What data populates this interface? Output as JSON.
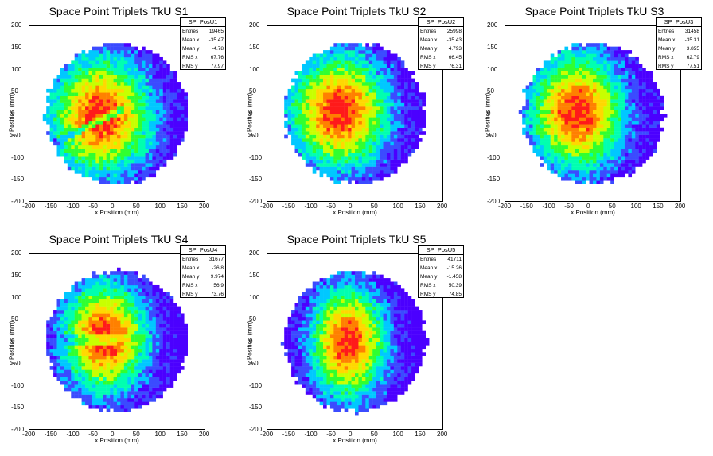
{
  "chart_data": [
    {
      "type": "heatmap",
      "title": "Space Point Triplets TkU S1",
      "xlabel": "x Position (mm)",
      "ylabel": "y Position (mm)",
      "xlim": [
        -200,
        200
      ],
      "ylim": [
        -200,
        200
      ],
      "xticks": [
        "-200",
        "-150",
        "-100",
        "-50",
        "0",
        "50",
        "100",
        "150",
        "200"
      ],
      "yticks": [
        "200",
        "150",
        "100",
        "50",
        "0",
        "-50",
        "-100",
        "-150",
        "-200"
      ],
      "stats": {
        "name": "SP_PosU1",
        "rows": [
          [
            "Entries",
            "19465"
          ],
          [
            "Mean x",
            "-35.47"
          ],
          [
            "Mean y",
            "-4.78"
          ],
          [
            "RMS x",
            "67.76"
          ],
          [
            "RMS y",
            "77.97"
          ]
        ]
      },
      "mean": [
        -35.47,
        -4.78
      ],
      "rms": [
        67.76,
        77.97
      ]
    },
    {
      "type": "heatmap",
      "title": "Space Point Triplets TkU S2",
      "xlabel": "x Position (mm)",
      "ylabel": "y Position (mm)",
      "xlim": [
        -200,
        200
      ],
      "ylim": [
        -200,
        200
      ],
      "xticks": [
        "-200",
        "-150",
        "-100",
        "-50",
        "0",
        "50",
        "100",
        "150",
        "200"
      ],
      "yticks": [
        "200",
        "150",
        "100",
        "50",
        "0",
        "-50",
        "-100",
        "-150",
        "-200"
      ],
      "stats": {
        "name": "SP_PosU2",
        "rows": [
          [
            "Entries",
            "25998"
          ],
          [
            "Mean x",
            "-35.43"
          ],
          [
            "Mean y",
            "4.793"
          ],
          [
            "RMS x",
            "66.45"
          ],
          [
            "RMS y",
            "76.31"
          ]
        ]
      },
      "mean": [
        -35.43,
        4.793
      ],
      "rms": [
        66.45,
        76.31
      ]
    },
    {
      "type": "heatmap",
      "title": "Space Point Triplets TkU S3",
      "xlabel": "x Position (mm)",
      "ylabel": "y Position (mm)",
      "xlim": [
        -200,
        200
      ],
      "ylim": [
        -200,
        200
      ],
      "xticks": [
        "-200",
        "-150",
        "-100",
        "-50",
        "0",
        "50",
        "100",
        "150",
        "200"
      ],
      "yticks": [
        "200",
        "150",
        "100",
        "50",
        "0",
        "-50",
        "-100",
        "-150",
        "-200"
      ],
      "stats": {
        "name": "SP_PosU3",
        "rows": [
          [
            "Entries",
            "31458"
          ],
          [
            "Mean x",
            "-35.31"
          ],
          [
            "Mean y",
            "3.855"
          ],
          [
            "RMS x",
            "62.79"
          ],
          [
            "RMS y",
            "77.51"
          ]
        ]
      },
      "mean": [
        -35.31,
        3.855
      ],
      "rms": [
        62.79,
        77.51
      ]
    },
    {
      "type": "heatmap",
      "title": "Space Point Triplets TkU S4",
      "xlabel": "x Position (mm)",
      "ylabel": "y Position (mm)",
      "xlim": [
        -200,
        200
      ],
      "ylim": [
        -200,
        200
      ],
      "xticks": [
        "-200",
        "-150",
        "-100",
        "-50",
        "0",
        "50",
        "100",
        "150",
        "200"
      ],
      "yticks": [
        "200",
        "150",
        "100",
        "50",
        "0",
        "-50",
        "-100",
        "-150",
        "-200"
      ],
      "stats": {
        "name": "SP_PosU4",
        "rows": [
          [
            "Entries",
            "31677"
          ],
          [
            "Mean x",
            "-26.8"
          ],
          [
            "Mean y",
            "9.974"
          ],
          [
            "RMS x",
            "56.9"
          ],
          [
            "RMS y",
            "73.76"
          ]
        ]
      },
      "mean": [
        -26.8,
        9.974
      ],
      "rms": [
        56.9,
        73.76
      ]
    },
    {
      "type": "heatmap",
      "title": "Space Point Triplets TkU S5",
      "xlabel": "x Position (mm)",
      "ylabel": "y Position (mm)",
      "xlim": [
        -200,
        200
      ],
      "ylim": [
        -200,
        200
      ],
      "xticks": [
        "-200",
        "-150",
        "-100",
        "-50",
        "0",
        "50",
        "100",
        "150",
        "200"
      ],
      "yticks": [
        "200",
        "150",
        "100",
        "50",
        "0",
        "-50",
        "-100",
        "-150",
        "-200"
      ],
      "stats": {
        "name": "SP_PosU5",
        "rows": [
          [
            "Entries",
            "41711"
          ],
          [
            "Mean x",
            "-15.26"
          ],
          [
            "Mean y",
            "-1.458"
          ],
          [
            "RMS x",
            "50.39"
          ],
          [
            "RMS y",
            "74.85"
          ]
        ]
      },
      "mean": [
        -15.26,
        -1.458
      ],
      "rms": [
        50.39,
        74.85
      ]
    }
  ],
  "colors": {
    "scale": [
      "#4b00ff",
      "#3b4bff",
      "#00c8ff",
      "#00ffb0",
      "#30ff30",
      "#c8ff00",
      "#ffd800",
      "#ff8000",
      "#ff1a1a"
    ]
  }
}
